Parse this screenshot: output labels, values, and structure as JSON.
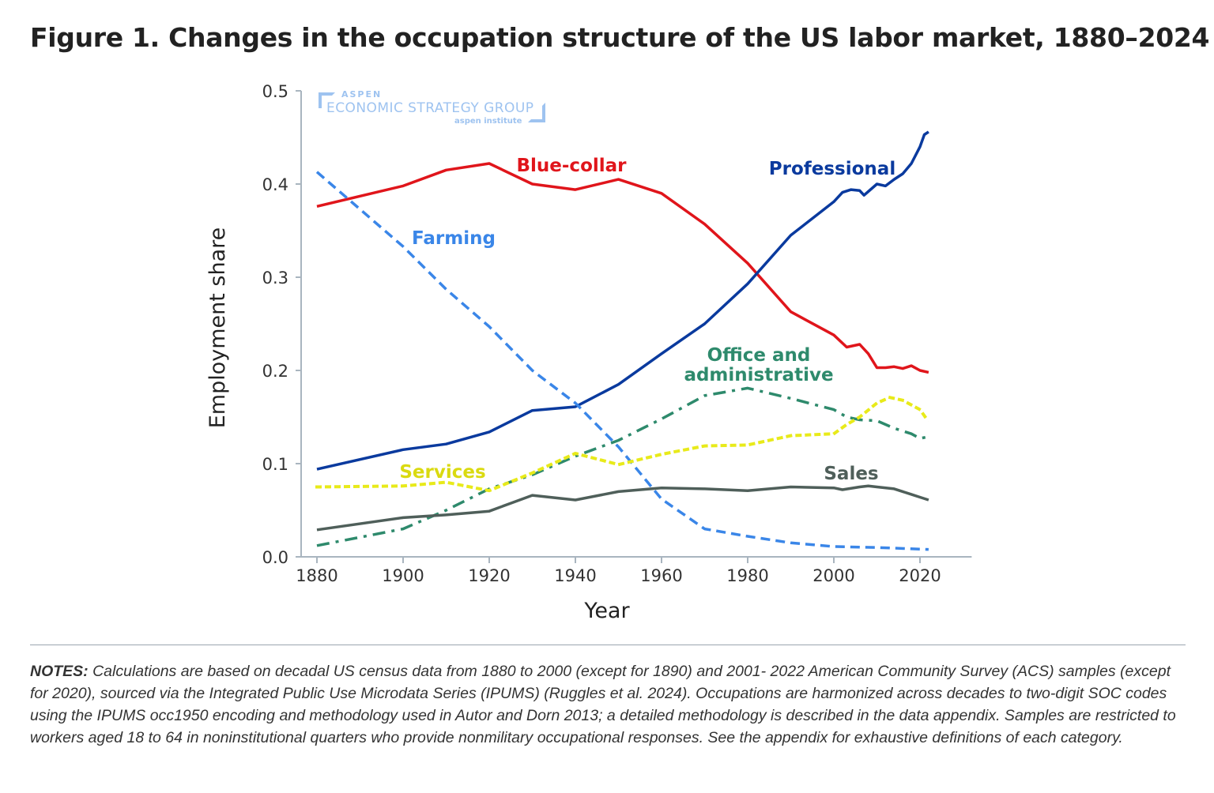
{
  "title": "Figure 1. Changes in the occupation structure of the US labor market, 1880–2024",
  "watermark": {
    "line1": "ASPEN",
    "line2": "ECONOMIC STRATEGY GROUP",
    "line3": "aspen institute"
  },
  "notes": {
    "label": "NOTES:",
    "text": " Calculations are based on decadal US census data from 1880 to 2000 (except for 1890) and 2001- 2022 American Community Survey (ACS) samples (except for 2020), sourced via the Integrated Public Use Microdata Series (IPUMS) (Ruggles et al. 2024). Occupations are harmonized across decades to two-digit SOC codes using the IPUMS occ1950 encoding and methodology used in Autor and Dorn 2013; a detailed methodology is described in the data appendix. Samples are restricted to workers aged 18 to 64 in noninstitutional quarters who provide nonmilitary occupational responses. See the appendix for exhaustive definitions of each category."
  },
  "chart_data": {
    "type": "line",
    "xlabel": "Year",
    "ylabel": "Employment share",
    "xlim": [
      1876,
      2032
    ],
    "ylim": [
      0,
      0.5
    ],
    "xticks": [
      1880,
      1900,
      1920,
      1940,
      1960,
      1980,
      2000,
      2020
    ],
    "yticks": [
      "0.0",
      "0.1",
      "0.2",
      "0.3",
      "0.4",
      "0.5"
    ],
    "grid": false,
    "legend": "inline labels",
    "series": [
      {
        "name": "Blue-collar",
        "color": "#e0151b",
        "dash": "solid",
        "x": [
          1880,
          1900,
          1910,
          1920,
          1930,
          1940,
          1950,
          1960,
          1970,
          1980,
          1990,
          2000,
          2003,
          2006,
          2008,
          2010,
          2012,
          2014,
          2016,
          2018,
          2020,
          2022
        ],
        "y": [
          0.376,
          0.398,
          0.415,
          0.422,
          0.4,
          0.394,
          0.405,
          0.39,
          0.357,
          0.315,
          0.263,
          0.238,
          0.225,
          0.228,
          0.218,
          0.203,
          0.203,
          0.204,
          0.202,
          0.205,
          0.2,
          0.198
        ]
      },
      {
        "name": "Professional",
        "color": "#0a3a9e",
        "dash": "solid",
        "x": [
          1880,
          1900,
          1910,
          1920,
          1930,
          1940,
          1950,
          1960,
          1970,
          1980,
          1990,
          2000,
          2002,
          2004,
          2006,
          2007,
          2010,
          2012,
          2014,
          2016,
          2018,
          2020,
          2021,
          2022
        ],
        "y": [
          0.094,
          0.115,
          0.121,
          0.134,
          0.157,
          0.161,
          0.185,
          0.218,
          0.25,
          0.293,
          0.345,
          0.381,
          0.391,
          0.394,
          0.393,
          0.388,
          0.4,
          0.398,
          0.405,
          0.411,
          0.422,
          0.44,
          0.453,
          0.456
        ]
      },
      {
        "name": "Farming",
        "color": "#3a86e8",
        "dash": "dash",
        "x": [
          1880,
          1900,
          1910,
          1920,
          1930,
          1940,
          1950,
          1960,
          1970,
          1980,
          1990,
          2000,
          2010,
          2022
        ],
        "y": [
          0.413,
          0.333,
          0.287,
          0.247,
          0.2,
          0.165,
          0.118,
          0.062,
          0.03,
          0.022,
          0.015,
          0.011,
          0.01,
          0.008
        ]
      },
      {
        "name": "Office and administrative",
        "color": "#2e8a6c",
        "dash": "dashdot",
        "x": [
          1880,
          1900,
          1910,
          1920,
          1930,
          1940,
          1950,
          1960,
          1970,
          1980,
          1990,
          2000,
          2003,
          2006,
          2010,
          2014,
          2018,
          2020,
          2022
        ],
        "y": [
          0.012,
          0.03,
          0.05,
          0.073,
          0.088,
          0.108,
          0.125,
          0.148,
          0.173,
          0.181,
          0.17,
          0.158,
          0.15,
          0.147,
          0.146,
          0.138,
          0.132,
          0.127,
          0.129
        ]
      },
      {
        "name": "Services",
        "color": "#e8ea1a",
        "dash": "dot",
        "x": [
          1880,
          1900,
          1910,
          1920,
          1930,
          1940,
          1950,
          1960,
          1970,
          1980,
          1990,
          2000,
          2003,
          2006,
          2010,
          2013,
          2016,
          2020,
          2022
        ],
        "y": [
          0.075,
          0.076,
          0.08,
          0.071,
          0.09,
          0.111,
          0.099,
          0.11,
          0.119,
          0.12,
          0.13,
          0.132,
          0.142,
          0.15,
          0.165,
          0.171,
          0.168,
          0.158,
          0.145
        ]
      },
      {
        "name": "Sales",
        "color": "#4f5f5a",
        "dash": "solid",
        "x": [
          1880,
          1900,
          1910,
          1920,
          1930,
          1940,
          1950,
          1960,
          1970,
          1980,
          1990,
          2000,
          2002,
          2006,
          2008,
          2010,
          2014,
          2018,
          2020,
          2022
        ],
        "y": [
          0.029,
          0.042,
          0.045,
          0.049,
          0.066,
          0.061,
          0.07,
          0.074,
          0.073,
          0.071,
          0.075,
          0.074,
          0.072,
          0.075,
          0.076,
          0.075,
          0.073,
          0.067,
          0.064,
          0.061
        ]
      }
    ]
  }
}
